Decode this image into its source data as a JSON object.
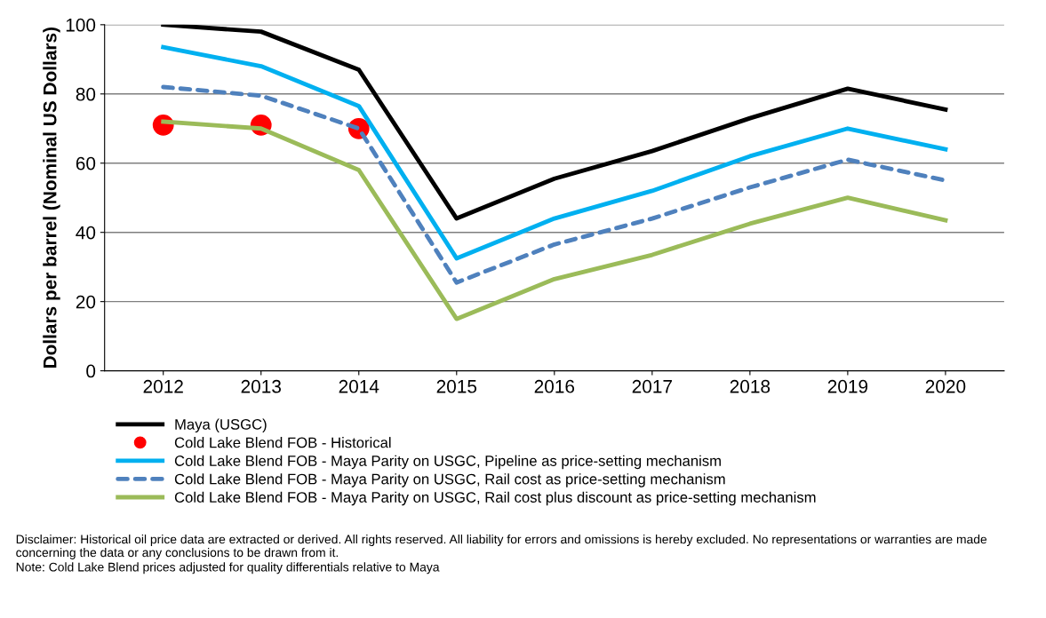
{
  "chart_data": {
    "type": "line",
    "ylabel": "Dollars per barrel (Nominal US Dollars)",
    "categories": [
      "2012",
      "2013",
      "2014",
      "2015",
      "2016",
      "2017",
      "2018",
      "2019",
      "2020"
    ],
    "series": [
      {
        "name": "Maya (USGC)",
        "color": "#000000",
        "line_style": "solid",
        "values": [
          100,
          98,
          87,
          44,
          55.5,
          63.5,
          73,
          81.5,
          75.5
        ]
      },
      {
        "name": "Cold Lake Blend FOB - Historical",
        "type": "scatter",
        "marker": "circle",
        "color": "#ff0000",
        "values": [
          71,
          71,
          70,
          null,
          null,
          null,
          null,
          null,
          null
        ]
      },
      {
        "name": "Cold Lake Blend FOB - Maya Parity on USGC, Pipeline as price-setting mechanism",
        "color": "#00b0f0",
        "line_style": "solid",
        "values": [
          93.5,
          88,
          76.5,
          32.5,
          44,
          52,
          62,
          70,
          64
        ]
      },
      {
        "name": "Cold Lake Blend FOB - Maya Parity on USGC, Rail cost as price-setting mechanism",
        "color": "#4f81bd",
        "line_style": "dashed",
        "values": [
          82,
          79.5,
          70,
          25.5,
          36.5,
          44,
          53,
          61,
          55
        ]
      },
      {
        "name": "Cold Lake Blend FOB - Maya Parity on USGC, Rail cost plus discount as price-setting mechanism",
        "color": "#9bbb59",
        "line_style": "solid",
        "values": [
          72,
          70,
          58,
          15,
          26.5,
          33.5,
          42.5,
          50,
          43.5
        ]
      }
    ],
    "ylim": [
      0,
      100
    ],
    "yticks": [
      0,
      20,
      40,
      60,
      80,
      100
    ],
    "grid": "y",
    "legend": "bottom",
    "annotations": [
      "Disclaimer: Historical oil price data are extracted or derived. All rights reserved. All liability for errors and omissions is hereby excluded. No representations or warranties are made concerning the data or any conclusions to be drawn from it.",
      "Note: Cold Lake Blend prices adjusted for quality differentials relative to Maya"
    ]
  }
}
